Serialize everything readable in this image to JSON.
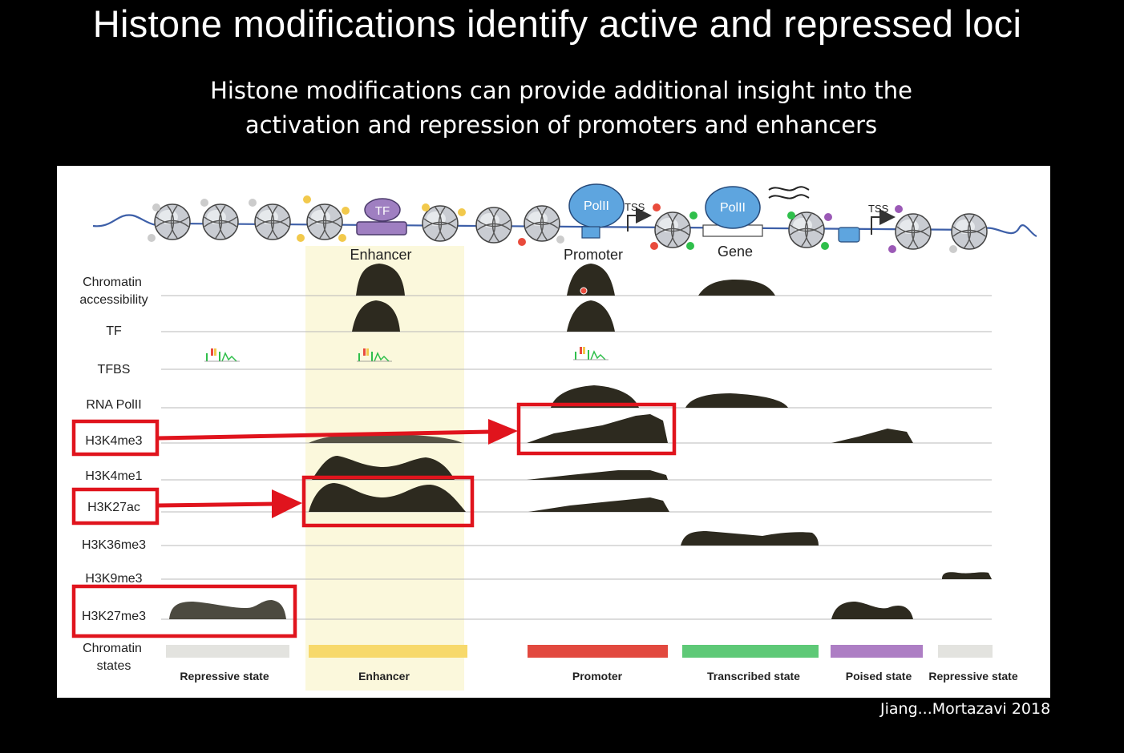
{
  "slide": {
    "title": "Histone modifications identify active and repressed loci",
    "subtitle_line1": "Histone modifications can provide additional insight into the",
    "subtitle_line2": "activation and repression of promoters and enhancers",
    "citation": "Jiang...Mortazavi 2018"
  },
  "figure": {
    "top_labels": {
      "tf": "TF",
      "polii_1": "PolII",
      "polii_2": "PolII",
      "tss_1": "TSS",
      "tss_2": "TSS",
      "enhancer": "Enhancer",
      "promoter": "Promoter",
      "gene": "Gene"
    },
    "tracks": [
      {
        "label_line1": "Chromatin",
        "label_line2": "accessibility"
      },
      {
        "label": "TF"
      },
      {
        "label": "TFBS"
      },
      {
        "label": "RNA PolII"
      },
      {
        "label": "H3K4me3",
        "highlighted": true
      },
      {
        "label": "H3K4me1"
      },
      {
        "label": "H3K27ac",
        "highlighted": true
      },
      {
        "label": "H3K36me3"
      },
      {
        "label": "H3K9me3"
      },
      {
        "label": "H3K27me3",
        "highlighted": true
      }
    ],
    "chromatin_states_label_line1": "Chromatin",
    "chromatin_states_label_line2": "states",
    "states": [
      {
        "label": "Repressive state",
        "color": "#e3e3df"
      },
      {
        "label": "Enhancer",
        "color": "#f7d96b"
      },
      {
        "label": "Promoter",
        "color": "#e2493f"
      },
      {
        "label": "Transcribed state",
        "color": "#5ec977"
      },
      {
        "label": "Poised state",
        "color": "#ad7ec4"
      },
      {
        "label": "Repressive state",
        "color": "#e3e3df"
      }
    ],
    "colors": {
      "highlight_box": "#e0141d",
      "enhancer_shade": "#fbf8dc",
      "peak": "#2d2a1f",
      "polii": "#5ea5df",
      "tf": "#9f7fc1"
    }
  }
}
